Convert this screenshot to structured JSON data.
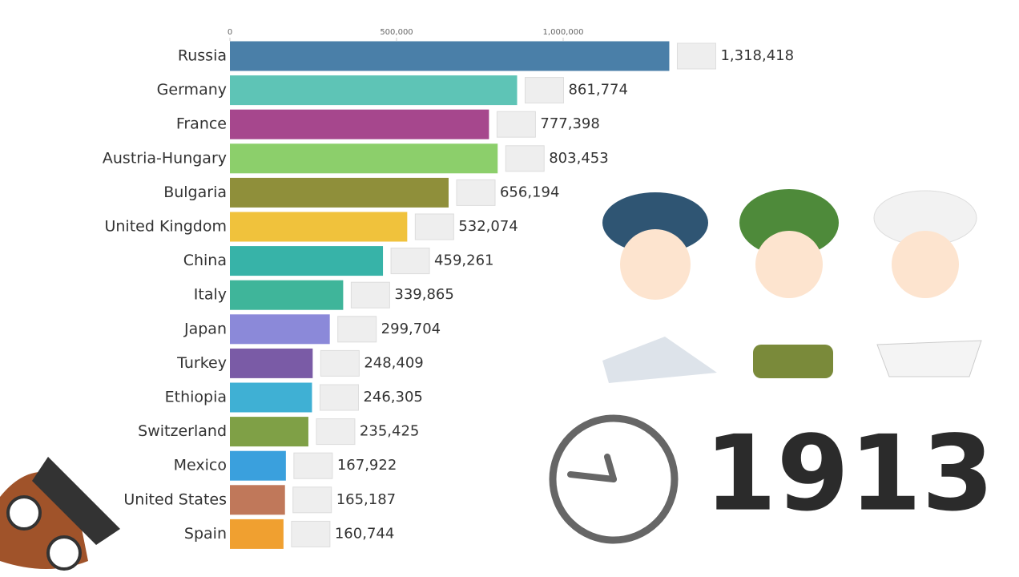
{
  "chart_data": {
    "type": "hbar",
    "categories": [
      "Russia",
      "Germany",
      "France",
      "Austria-Hungary",
      "Bulgaria",
      "United Kingdom",
      "China",
      "Italy",
      "Japan",
      "Turkey",
      "Ethiopia",
      "Switzerland",
      "Mexico",
      "United States",
      "Spain"
    ],
    "values": [
      1318418,
      861774,
      777398,
      803453,
      656194,
      532074,
      459261,
      339865,
      299704,
      248409,
      246305,
      235425,
      167922,
      165187,
      160744
    ],
    "value_labels": [
      "1,318,418",
      "861,774",
      "777,398",
      "803,453",
      "656,194",
      "532,074",
      "459,261",
      "339,865",
      "299,704",
      "248,409",
      "246,305",
      "235,425",
      "167,922",
      "165,187",
      "160,744"
    ],
    "colors": [
      "#4a7fa8",
      "#5ec4b6",
      "#a6478d",
      "#8ccf6b",
      "#8f8f3a",
      "#f0c23c",
      "#37b3a8",
      "#3fb59a",
      "#8b89d9",
      "#7a5ba6",
      "#3fb0d4",
      "#7fa046",
      "#3aa0dd",
      "#c0785a",
      "#f0a030"
    ],
    "xlim": [
      0,
      1500000
    ],
    "xticks": [
      0,
      {
        "value": 500000,
        "label": "500,000"
      },
      {
        "value": 1000000,
        "label": "1,000,000"
      }
    ],
    "annotation": "1913"
  }
}
